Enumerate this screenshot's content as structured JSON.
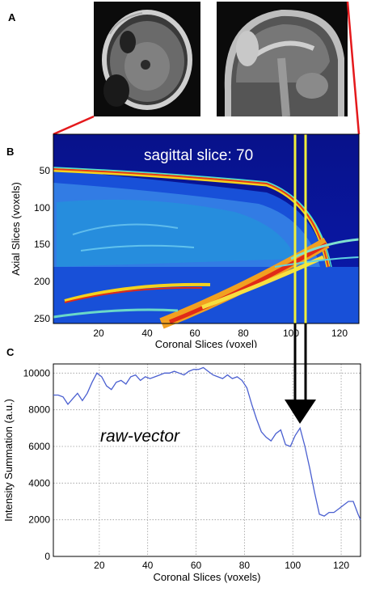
{
  "panels": {
    "a_label": "A",
    "b_label": "B",
    "c_label": "C"
  },
  "colors": {
    "connector_red": "#e4191c",
    "marker_yellow": "#f0ee3a",
    "curve_blue": "#4a5fd0",
    "heatmap_bg": "#0a16a0"
  },
  "panel_b": {
    "overlay_text": "sagittal slice: 70",
    "xlabel": "Coronal Slices (voxel)",
    "ylabel": "Axial Slices (voxels)",
    "xticks": [
      "20",
      "40",
      "60",
      "80",
      "100",
      "120"
    ],
    "yticks": [
      "50",
      "100",
      "150",
      "200",
      "250"
    ]
  },
  "chart_data": {
    "type": "line",
    "xlabel": "Coronal Slices (voxels)",
    "ylabel": "Intensity Summation (a.u.)",
    "annotation": "raw-vector",
    "xlim": [
      1,
      128
    ],
    "ylim": [
      0,
      10500
    ],
    "grid": true,
    "xticks": [
      20,
      40,
      60,
      80,
      100,
      120
    ],
    "yticks": [
      0,
      2000,
      4000,
      6000,
      8000,
      10000
    ],
    "series": [
      {
        "x": [
          1,
          3,
          5,
          7,
          9,
          11,
          13,
          15,
          17,
          19,
          21,
          23,
          25,
          27,
          29,
          31,
          33,
          35,
          37,
          39,
          41,
          43,
          45,
          47,
          49,
          51,
          53,
          55,
          57,
          59,
          61,
          63,
          65,
          67,
          69,
          71,
          73,
          75,
          77,
          79,
          81,
          83,
          85,
          87,
          89,
          91,
          93,
          95,
          97,
          99,
          101,
          103,
          105,
          107,
          109,
          111,
          113,
          115,
          117,
          119,
          121,
          123,
          125,
          127,
          128
        ],
        "y": [
          8800,
          8800,
          8700,
          8300,
          8600,
          8900,
          8500,
          8900,
          9500,
          10000,
          9800,
          9300,
          9100,
          9500,
          9600,
          9400,
          9800,
          9900,
          9600,
          9800,
          9700,
          9800,
          9900,
          10000,
          10000,
          10100,
          10000,
          9900,
          10100,
          10200,
          10200,
          10300,
          10100,
          9900,
          9800,
          9700,
          9900,
          9700,
          9800,
          9600,
          9200,
          8300,
          7500,
          6800,
          6500,
          6300,
          6700,
          6900,
          6100,
          6000,
          6600,
          7000,
          6000,
          4800,
          3500,
          2300,
          2200,
          2400,
          2400,
          2600,
          2800,
          3000,
          3000,
          2300,
          2000
        ]
      }
    ]
  }
}
